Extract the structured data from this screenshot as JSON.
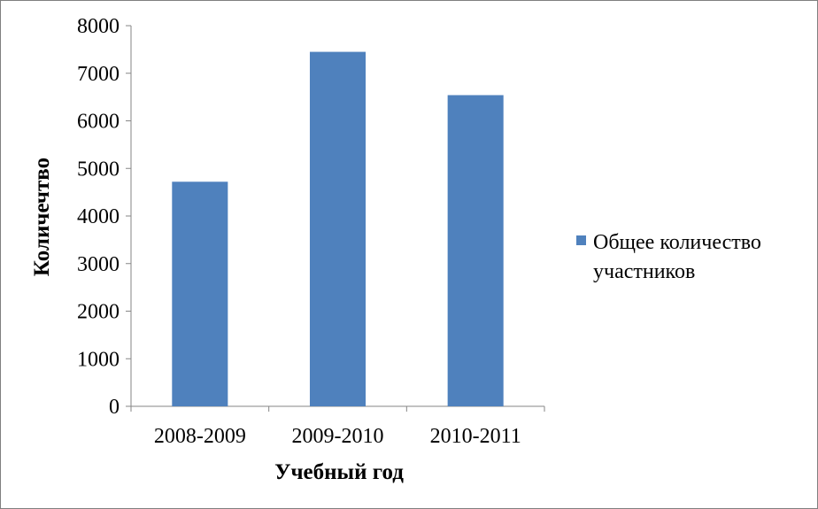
{
  "chart_data": {
    "type": "bar",
    "categories": [
      "2008-2009",
      "2009-2010",
      "2010-2011"
    ],
    "series": [
      {
        "name": "Общее количество участников",
        "values": [
          4720,
          7450,
          6540
        ],
        "color": "#4f81bd"
      }
    ],
    "xlabel": "Учебный год",
    "ylabel": "Количечтво",
    "ylim": [
      0,
      8000
    ],
    "yticks": [
      0,
      1000,
      2000,
      3000,
      4000,
      5000,
      6000,
      7000,
      8000
    ],
    "grid": false,
    "legend": {
      "position": "right",
      "lines": [
        "Общее количество",
        "участников"
      ]
    }
  }
}
